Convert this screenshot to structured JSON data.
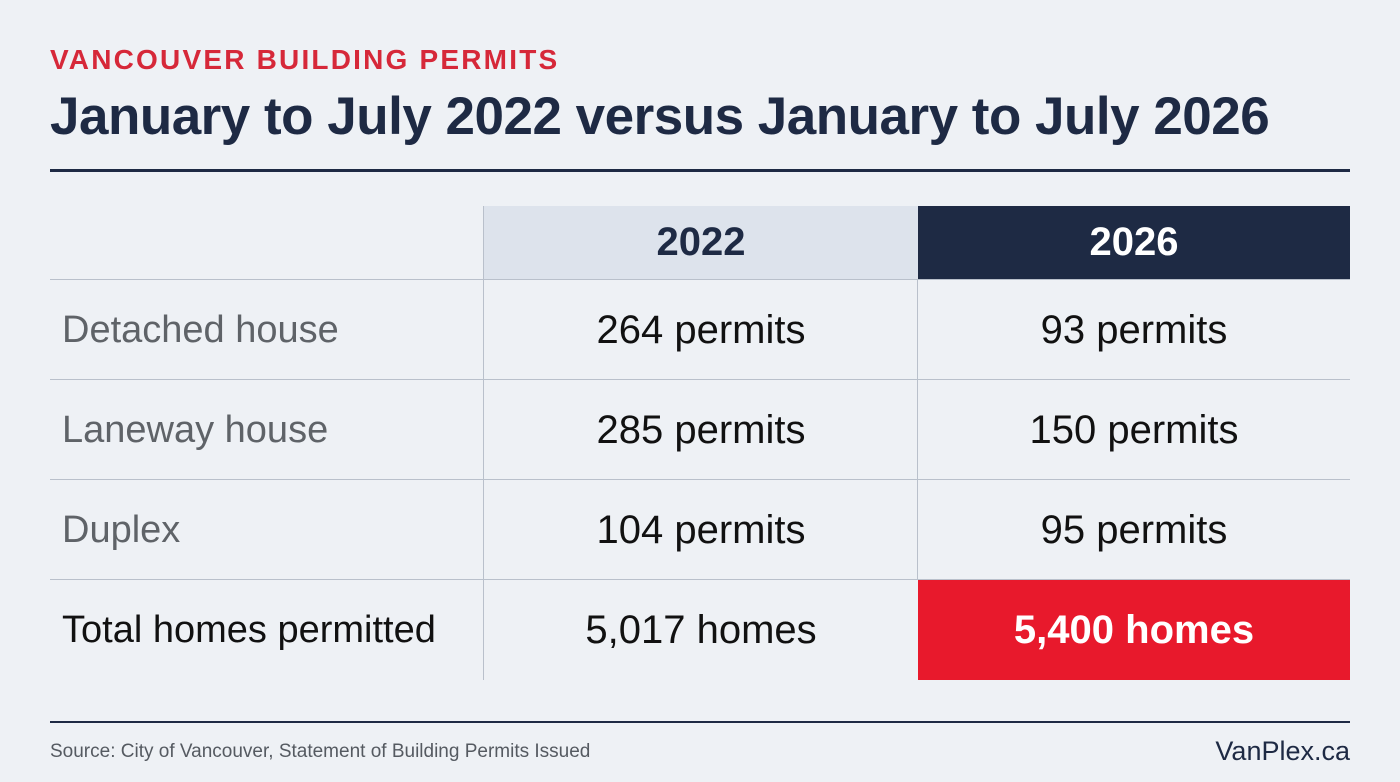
{
  "header": {
    "kicker": "VANCOUVER BUILDING PERMITS",
    "title": "January to July 2022 versus January to July 2026"
  },
  "table": {
    "columns": [
      "",
      "2022",
      "2026"
    ],
    "rows": [
      {
        "label": "Detached house",
        "v2022": "264 permits",
        "v2026": "93 permits"
      },
      {
        "label": "Laneway house",
        "v2022": "285 permits",
        "v2026": "150 permits"
      },
      {
        "label": "Duplex",
        "v2022": "104 permits",
        "v2026": "95 permits"
      },
      {
        "label": "Total homes permitted",
        "v2022": "5,017 homes",
        "v2026": "5,400 homes"
      }
    ]
  },
  "chart_data": {
    "type": "table",
    "title": "January to July 2022 versus January to July 2026",
    "columns": [
      "2022",
      "2026"
    ],
    "rows": [
      {
        "category": "Detached house",
        "2022": 264,
        "2026": 93,
        "unit": "permits"
      },
      {
        "category": "Laneway house",
        "2022": 285,
        "2026": 150,
        "unit": "permits"
      },
      {
        "category": "Duplex",
        "2022": 104,
        "2026": 95,
        "unit": "permits"
      },
      {
        "category": "Total homes permitted",
        "2022": 5017,
        "2026": 5400,
        "unit": "homes"
      }
    ]
  },
  "footer": {
    "source": "Source: City of Vancouver, Statement of Building Permits Issued",
    "brand": "VanPlex.ca"
  },
  "colors": {
    "accent_red": "#e8192c",
    "navy": "#1e2a44",
    "background": "#eef1f5",
    "header_2022_bg": "#dde3ec"
  }
}
